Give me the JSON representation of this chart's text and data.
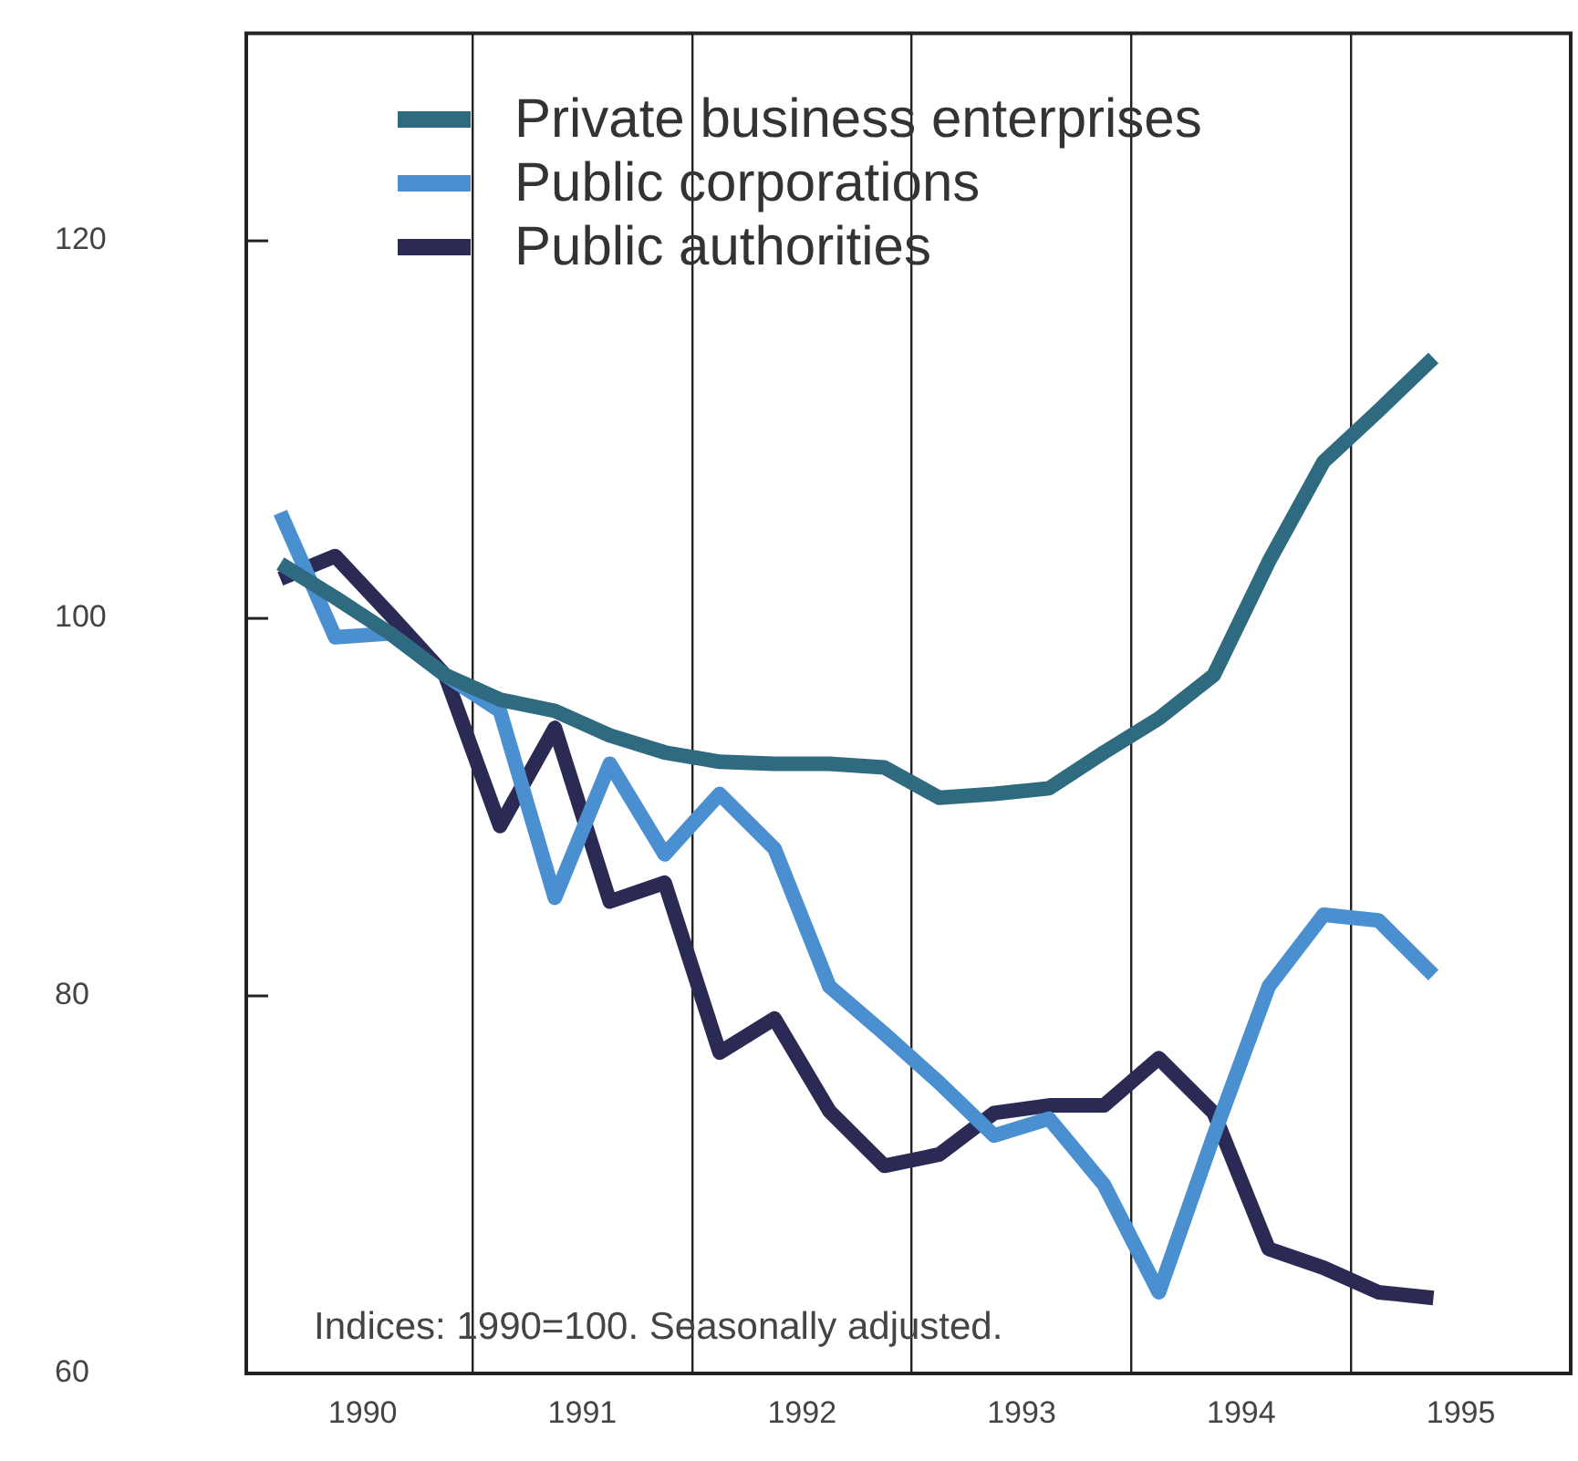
{
  "chart_data": {
    "type": "line",
    "x": [
      1990.125,
      1990.375,
      1990.625,
      1990.875,
      1991.125,
      1991.375,
      1991.625,
      1991.875,
      1992.125,
      1992.375,
      1992.625,
      1992.875,
      1993.125,
      1993.375,
      1993.625,
      1993.875,
      1994.125,
      1994.375,
      1994.625,
      1994.875,
      1995.125,
      1995.375
    ],
    "series": [
      {
        "name": "Private business enterprises",
        "color": "#2e6a80",
        "values": [
          102.9,
          101.1,
          99.2,
          97.0,
          95.7,
          95.1,
          93.8,
          92.9,
          92.4,
          92.3,
          92.3,
          92.1,
          90.5,
          90.7,
          91.0,
          92.9,
          94.7,
          97.0,
          103.0,
          108.3,
          111.0,
          113.8
        ]
      },
      {
        "name": "Public corporations",
        "color": "#4a90d0",
        "values": [
          105.6,
          99.0,
          99.2,
          97.0,
          95.1,
          85.2,
          92.3,
          87.5,
          90.7,
          87.8,
          80.5,
          78.0,
          75.4,
          72.6,
          73.5,
          70.0,
          64.3,
          72.6,
          80.5,
          84.3,
          84.0,
          81.1
        ]
      },
      {
        "name": "Public authorities",
        "color": "#2b2a55",
        "values": [
          102.1,
          103.3,
          100.2,
          97.0,
          89.0,
          94.2,
          85.0,
          86.0,
          77.0,
          78.8,
          73.9,
          71.0,
          71.6,
          73.8,
          74.2,
          74.2,
          76.7,
          73.8,
          66.6,
          65.6,
          64.3,
          64.0
        ]
      }
    ],
    "xlim": [
      1989.97,
      1996.0
    ],
    "xticks": [
      {
        "value": 1990.5,
        "label": "1990"
      },
      {
        "value": 1991,
        "label": null
      },
      {
        "value": 1991.5,
        "label": "1991"
      },
      {
        "value": 1992,
        "label": null
      },
      {
        "value": 1992.5,
        "label": "1992"
      },
      {
        "value": 1993,
        "label": null
      },
      {
        "value": 1993.5,
        "label": "1993"
      },
      {
        "value": 1994,
        "label": null
      },
      {
        "value": 1994.5,
        "label": "1994"
      },
      {
        "value": 1995,
        "label": null
      },
      {
        "value": 1995.5,
        "label": "1995"
      }
    ],
    "ylim": [
      60,
      131
    ],
    "yticks": [
      60,
      80,
      100,
      120
    ],
    "grid": "x",
    "legend": "top left",
    "line_style": "solid",
    "annotations": [
      "Indices: 1990=100. Seasonally adjusted."
    ]
  }
}
